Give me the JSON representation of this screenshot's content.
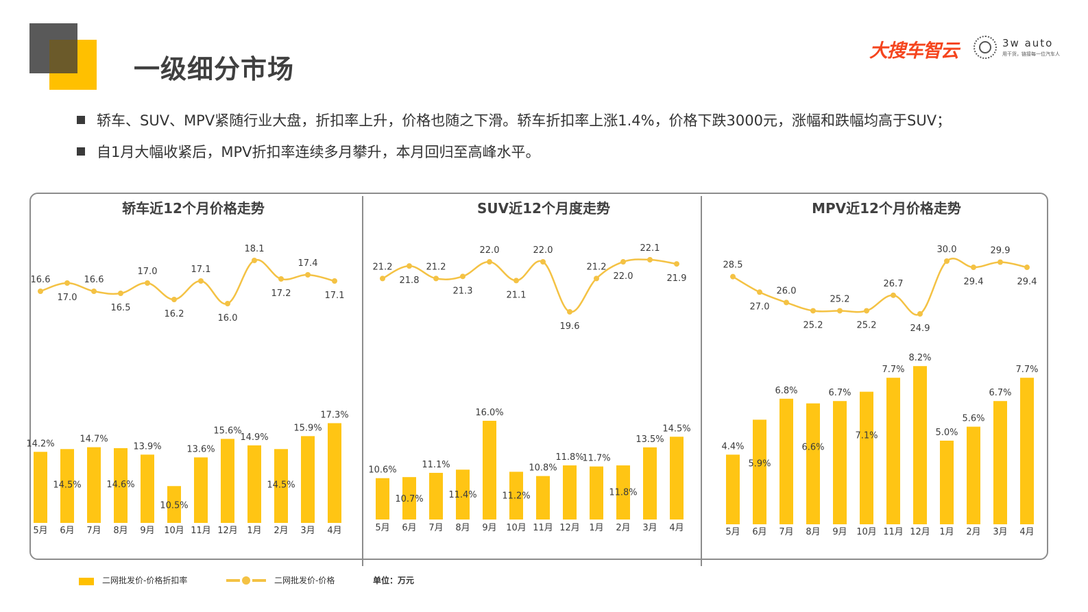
{
  "header": {
    "title": "一级细分市场",
    "brand_logo": "大搜车智云",
    "partner_name": "3w auto",
    "partner_slogan": "用干货，链接每一位汽车人"
  },
  "bullets": [
    "轿车、SUV、MPV紧随行业大盘，折扣率上升，价格也随之下滑。轿车折扣率上涨1.4%，价格下跌3000元，涨幅和跌幅均高于SUV；",
    "自1月大幅收紧后，MPV折扣率连续多月攀升，本月回归至高峰水平。"
  ],
  "legend": {
    "bar_label": "二网批发价-价格折扣率",
    "line_label": "二网批发价-价格",
    "unit": "单位：万元"
  },
  "colors": {
    "bar": "#FFC000",
    "line": "#F4C244",
    "accent_yellow": "#FFC000",
    "accent_gray": "#595959",
    "brand_red": "#F5451E"
  },
  "chart_data": [
    {
      "type": "bar+line",
      "title": "轿车近12个月价格走势",
      "categories": [
        "5月",
        "6月",
        "7月",
        "8月",
        "9月",
        "10月",
        "11月",
        "12月",
        "1月",
        "2月",
        "3月",
        "4月"
      ],
      "series": [
        {
          "name": "二网批发价-价格折扣率",
          "type": "bar",
          "values": [
            14.2,
            14.5,
            14.7,
            14.6,
            13.9,
            10.5,
            13.6,
            15.6,
            14.9,
            14.5,
            15.9,
            17.3
          ],
          "unit": "%"
        },
        {
          "name": "二网批发价-价格",
          "type": "line",
          "values": [
            16.6,
            17.0,
            16.6,
            16.5,
            17.0,
            16.2,
            17.1,
            16.0,
            18.1,
            17.2,
            17.4,
            17.1
          ]
        }
      ]
    },
    {
      "type": "bar+line",
      "title": "SUV近12个月度走势",
      "categories": [
        "5月",
        "6月",
        "7月",
        "8月",
        "9月",
        "10月",
        "11月",
        "12月",
        "1月",
        "2月",
        "3月",
        "4月"
      ],
      "series": [
        {
          "name": "二网批发价-价格折扣率",
          "type": "bar",
          "values": [
            10.6,
            10.7,
            11.1,
            11.4,
            16.0,
            11.2,
            10.8,
            11.8,
            11.7,
            11.8,
            13.5,
            14.5
          ],
          "unit": "%"
        },
        {
          "name": "二网批发价-价格",
          "type": "line",
          "values": [
            21.2,
            21.8,
            21.2,
            21.3,
            22.0,
            21.1,
            22.0,
            19.6,
            21.2,
            22.0,
            22.1,
            21.9
          ]
        }
      ]
    },
    {
      "type": "bar+line",
      "title": "MPV近12个月价格走势",
      "categories": [
        "5月",
        "6月",
        "7月",
        "8月",
        "9月",
        "10月",
        "11月",
        "12月",
        "1月",
        "2月",
        "3月",
        "4月"
      ],
      "series": [
        {
          "name": "二网批发价-价格折扣率",
          "type": "bar",
          "values": [
            4.4,
            5.9,
            6.8,
            6.6,
            6.7,
            7.1,
            7.7,
            8.2,
            5.0,
            5.6,
            6.7,
            7.7
          ],
          "unit": "%"
        },
        {
          "name": "二网批发价-价格",
          "type": "line",
          "values": [
            28.5,
            27.0,
            26.0,
            25.2,
            25.2,
            25.2,
            26.7,
            24.9,
            30.0,
            29.4,
            29.9,
            29.4
          ]
        }
      ]
    }
  ]
}
